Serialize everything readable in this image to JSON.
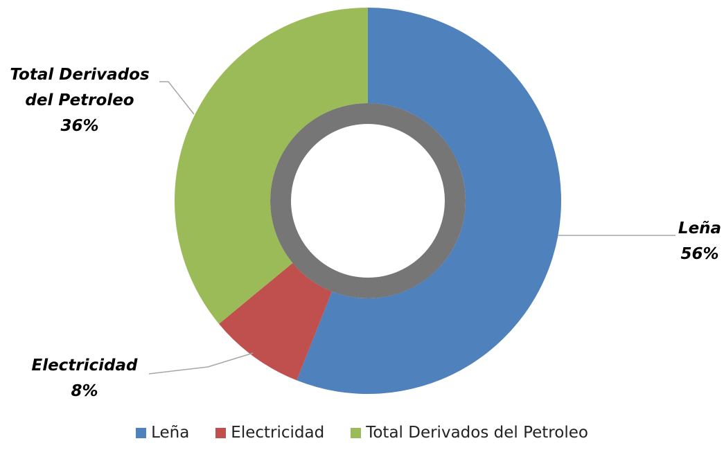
{
  "chart_data": {
    "type": "donut",
    "categories": [
      "Leña",
      "Electricidad",
      "Total Derivados del Petroleo"
    ],
    "values": [
      56,
      8,
      36
    ],
    "value_labels": [
      "56%",
      "8%",
      "36%"
    ],
    "colors": [
      "#4f81bd",
      "#c0504d",
      "#9bbb59"
    ],
    "legend": "bottom"
  }
}
